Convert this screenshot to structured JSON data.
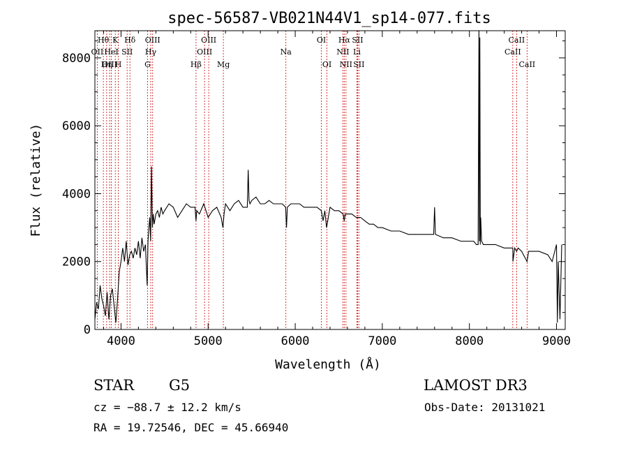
{
  "chart_data": {
    "type": "line",
    "title": "spec-56587-VB021N44V1_sp14-077.fits",
    "xlabel": "Wavelength (Å)",
    "ylabel": "Flux (relative)",
    "xlim": [
      3700,
      9100
    ],
    "ylim": [
      0,
      8800
    ],
    "xticks": [
      4000,
      5000,
      6000,
      7000,
      8000,
      9000
    ],
    "yticks": [
      0,
      2000,
      4000,
      6000,
      8000
    ],
    "grid": false,
    "series": [
      {
        "name": "flux",
        "color": "#000000",
        "x": [
          3700,
          3720,
          3740,
          3760,
          3780,
          3800,
          3820,
          3840,
          3860,
          3880,
          3900,
          3920,
          3940,
          3960,
          3980,
          4000,
          4020,
          4040,
          4060,
          4080,
          4100,
          4120,
          4140,
          4160,
          4180,
          4200,
          4220,
          4240,
          4260,
          4280,
          4300,
          4310,
          4320,
          4330,
          4340,
          4350,
          4360,
          4370,
          4380,
          4400,
          4420,
          4440,
          4460,
          4480,
          4500,
          4550,
          4600,
          4650,
          4700,
          4750,
          4800,
          4850,
          4861,
          4870,
          4900,
          4950,
          5000,
          5050,
          5100,
          5150,
          5170,
          5183,
          5200,
          5250,
          5300,
          5350,
          5400,
          5450,
          5460,
          5470,
          5480,
          5500,
          5550,
          5600,
          5650,
          5700,
          5750,
          5800,
          5850,
          5890,
          5900,
          5910,
          5950,
          6000,
          6050,
          6100,
          6150,
          6200,
          6250,
          6300,
          6320,
          6340,
          6360,
          6400,
          6450,
          6500,
          6550,
          6563,
          6575,
          6600,
          6650,
          6700,
          6750,
          6800,
          6850,
          6900,
          6950,
          7000,
          7100,
          7200,
          7300,
          7400,
          7500,
          7590,
          7600,
          7610,
          7700,
          7800,
          7900,
          8000,
          8050,
          8080,
          8100,
          8110,
          8115,
          8120,
          8125,
          8130,
          8140,
          8160,
          8200,
          8300,
          8400,
          8498,
          8500,
          8520,
          8542,
          8560,
          8600,
          8662,
          8680,
          8700,
          8800,
          8900,
          8950,
          9000,
          9010,
          9020,
          9040,
          9060
        ],
        "values": [
          300,
          800,
          600,
          1300,
          900,
          700,
          400,
          1100,
          300,
          1000,
          1200,
          700,
          200,
          900,
          1700,
          2000,
          2400,
          2000,
          2600,
          1900,
          2200,
          2300,
          2100,
          2400,
          2200,
          2600,
          2100,
          2700,
          2300,
          2500,
          1300,
          2600,
          3000,
          3300,
          2600,
          4800,
          3000,
          3400,
          3100,
          3400,
          3500,
          3300,
          3600,
          3400,
          3500,
          3700,
          3600,
          3300,
          3500,
          3700,
          3600,
          3600,
          3200,
          3500,
          3400,
          3700,
          3300,
          3500,
          3600,
          3300,
          3000,
          3400,
          3700,
          3500,
          3700,
          3800,
          3600,
          3600,
          4700,
          3800,
          3700,
          3800,
          3900,
          3700,
          3700,
          3800,
          3700,
          3700,
          3700,
          3600,
          3000,
          3600,
          3700,
          3700,
          3700,
          3600,
          3600,
          3600,
          3600,
          3500,
          3200,
          3500,
          3000,
          3600,
          3500,
          3500,
          3400,
          3200,
          3400,
          3400,
          3400,
          3300,
          3300,
          3200,
          3100,
          3100,
          3000,
          3000,
          2900,
          2900,
          2800,
          2800,
          2800,
          2800,
          3600,
          2800,
          2700,
          2700,
          2600,
          2600,
          2600,
          2500,
          2500,
          8800,
          2600,
          8600,
          2500,
          3300,
          2600,
          2500,
          2500,
          2500,
          2400,
          2400,
          2000,
          2400,
          2300,
          2400,
          2300,
          2000,
          2300,
          2300,
          2300,
          2200,
          2000,
          2500,
          200,
          2000,
          300,
          2500
        ]
      }
    ],
    "lines": [
      {
        "label": "Hθ",
        "wavelength": 3797,
        "row": 0
      },
      {
        "label": "OII",
        "wavelength": 3727,
        "row": 1
      },
      {
        "label": "OIII",
        "wavelength": 3869,
        "row": 2
      },
      {
        "label": "HeI",
        "wavelength": 3889,
        "row": 1
      },
      {
        "label": "Hη",
        "wavelength": 3835,
        "row": 2
      },
      {
        "label": "K",
        "wavelength": 3934,
        "row": 0
      },
      {
        "label": "H",
        "wavelength": 3969,
        "row": 2
      },
      {
        "label": "SII",
        "wavelength": 4070,
        "row": 1
      },
      {
        "label": "Hδ",
        "wavelength": 4102,
        "row": 0
      },
      {
        "label": "OIII",
        "wavelength": 4363,
        "row": 0
      },
      {
        "label": "Hγ",
        "wavelength": 4341,
        "row": 1
      },
      {
        "label": "G",
        "wavelength": 4305,
        "row": 2
      },
      {
        "label": "Hβ",
        "wavelength": 4861,
        "row": 2
      },
      {
        "label": "OIII",
        "wavelength": 5007,
        "row": 0
      },
      {
        "label": "OIII",
        "wavelength": 4959,
        "row": 1
      },
      {
        "label": "Mg",
        "wavelength": 5175,
        "row": 2
      },
      {
        "label": "Na",
        "wavelength": 5893,
        "row": 1
      },
      {
        "label": "OI",
        "wavelength": 6300,
        "row": 0
      },
      {
        "label": "OI",
        "wavelength": 6364,
        "row": 2
      },
      {
        "label": "Hα",
        "wavelength": 6563,
        "row": 0
      },
      {
        "label": "NII",
        "wavelength": 6548,
        "row": 1
      },
      {
        "label": "NII",
        "wavelength": 6583,
        "row": 2
      },
      {
        "label": "SII",
        "wavelength": 6716,
        "row": 0
      },
      {
        "label": "Li",
        "wavelength": 6708,
        "row": 1
      },
      {
        "label": "SII",
        "wavelength": 6731,
        "row": 2
      },
      {
        "label": "CaII",
        "wavelength": 8542,
        "row": 0
      },
      {
        "label": "CaII",
        "wavelength": 8498,
        "row": 1
      },
      {
        "label": "CaII",
        "wavelength": 8662,
        "row": 2
      }
    ]
  },
  "info": {
    "class_label": "STAR",
    "subclass": "G5",
    "survey": "LAMOST DR3",
    "cz": "cz = −88.7 ± 12.2 km/s",
    "obs_date": "Obs-Date: 20131021",
    "coords": "RA =  19.72546, DEC =  45.66940"
  },
  "colors": {
    "line_marker": "#cc0000",
    "spectrum": "#000000",
    "axes": "#000000"
  }
}
